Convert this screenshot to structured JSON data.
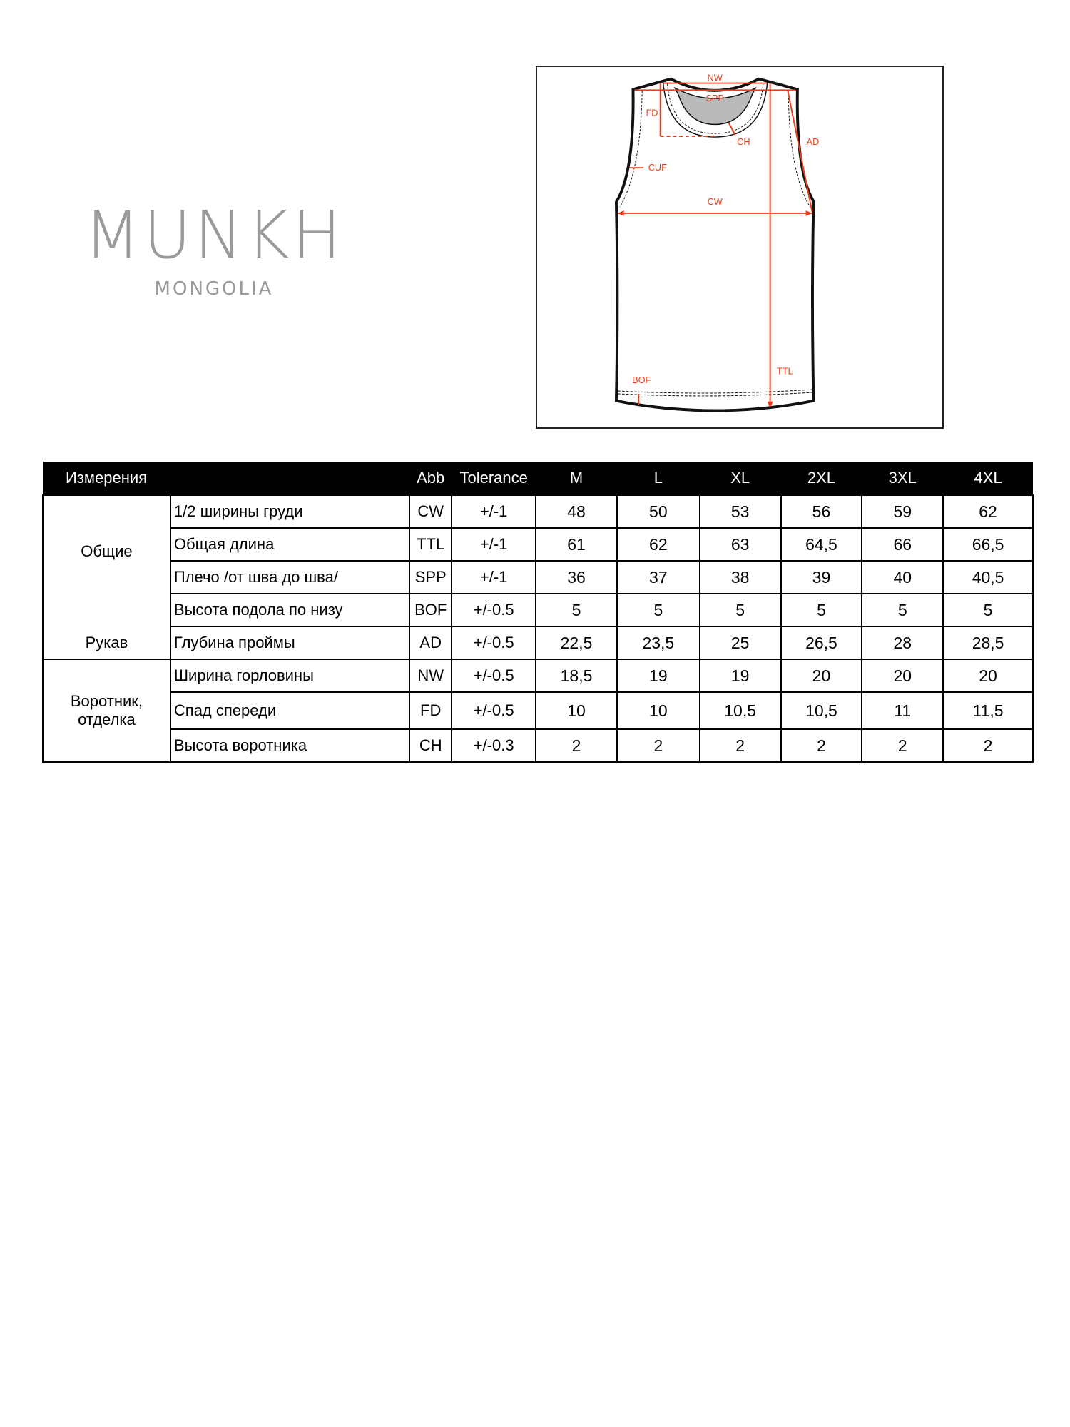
{
  "logo": {
    "brand": "MUNKH",
    "subtitle": "MONGOLIA"
  },
  "diagram": {
    "labels": {
      "nw": "NW",
      "spp": "SPP",
      "fd": "FD",
      "ch": "CH",
      "ad": "AD",
      "cuf": "CUF",
      "cw": "CW",
      "ttl": "TTL",
      "bof": "BOF"
    },
    "accent_color": "#e8401c"
  },
  "table": {
    "headers": [
      "Измерения",
      "",
      "Abb",
      "Tolerance",
      "M",
      "L",
      "XL",
      "2XL",
      "3XL",
      "4XL"
    ],
    "groups": {
      "general": "Общие",
      "sleeve": "Рукав",
      "collar": "Воротник, отделка"
    },
    "rows": [
      {
        "name": "1/2 ширины груди",
        "abb": "CW",
        "tol": "+/-1",
        "values": [
          "48",
          "50",
          "53",
          "56",
          "59",
          "62"
        ]
      },
      {
        "name": "Общая длина",
        "abb": "TTL",
        "tol": "+/-1",
        "values": [
          "61",
          "62",
          "63",
          "64,5",
          "66",
          "66,5"
        ]
      },
      {
        "name": "Плечо /от шва до шва/",
        "abb": "SPP",
        "tol": "+/-1",
        "values": [
          "36",
          "37",
          "38",
          "39",
          "40",
          "40,5"
        ]
      },
      {
        "name": "Высота подола по низу",
        "abb": "BOF",
        "tol": "+/-0.5",
        "values": [
          "5",
          "5",
          "5",
          "5",
          "5",
          "5"
        ]
      },
      {
        "name": "Глубина проймы",
        "abb": "AD",
        "tol": "+/-0.5",
        "values": [
          "22,5",
          "23,5",
          "25",
          "26,5",
          "28",
          "28,5"
        ]
      },
      {
        "name": "Ширина горловины",
        "abb": "NW",
        "tol": "+/-0.5",
        "values": [
          "18,5",
          "19",
          "19",
          "20",
          "20",
          "20"
        ]
      },
      {
        "name": "Спад спереди",
        "abb": "FD",
        "tol": "+/-0.5",
        "values": [
          "10",
          "10",
          "10,5",
          "10,5",
          "11",
          "11,5"
        ]
      },
      {
        "name": "Высота воротника",
        "abb": "CH",
        "tol": "+/-0.3",
        "values": [
          "2",
          "2",
          "2",
          "2",
          "2",
          "2"
        ]
      }
    ]
  }
}
